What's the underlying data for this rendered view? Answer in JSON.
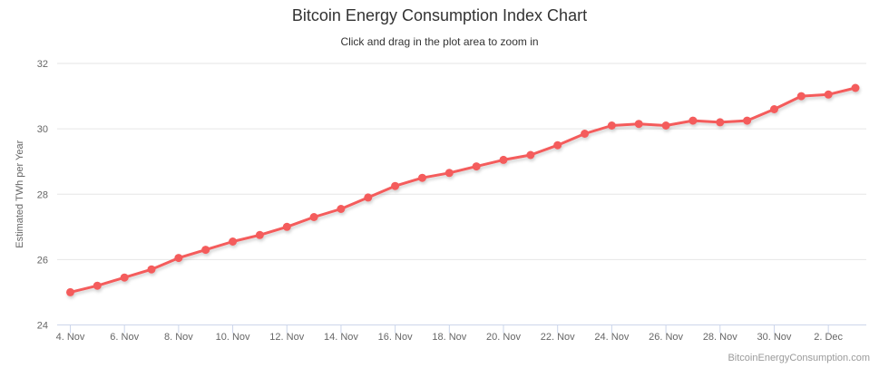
{
  "chart": {
    "title": "Bitcoin Energy Consumption Index Chart",
    "subtitle": "Click and drag in the plot area to zoom in",
    "watermark": "BitcoinEnergyConsumption.com"
  },
  "chart_data": {
    "type": "line",
    "title": "Bitcoin Energy Consumption Index Chart",
    "subtitle": "Click and drag in the plot area to zoom in",
    "xlabel": "",
    "ylabel": "Estimated TWh per Year",
    "ylim": [
      24,
      32
    ],
    "y_ticks": [
      24,
      26,
      28,
      30,
      32
    ],
    "grid": "horizontal-only",
    "legend": "none",
    "x_tick_every": 2,
    "x": [
      "4. Nov",
      "5. Nov",
      "6. Nov",
      "7. Nov",
      "8. Nov",
      "9. Nov",
      "10. Nov",
      "11. Nov",
      "12. Nov",
      "13. Nov",
      "14. Nov",
      "15. Nov",
      "16. Nov",
      "17. Nov",
      "18. Nov",
      "19. Nov",
      "20. Nov",
      "21. Nov",
      "22. Nov",
      "23. Nov",
      "24. Nov",
      "25. Nov",
      "26. Nov",
      "27. Nov",
      "28. Nov",
      "29. Nov",
      "30. Nov",
      "1. Dec",
      "2. Dec",
      "3. Dec"
    ],
    "series": [
      {
        "name": "Estimated TWh per Year",
        "values": [
          25.0,
          25.2,
          25.45,
          25.7,
          26.05,
          26.3,
          26.55,
          26.75,
          27.0,
          27.3,
          27.55,
          27.9,
          28.25,
          28.5,
          28.65,
          28.85,
          29.05,
          29.2,
          29.5,
          29.85,
          30.1,
          30.15,
          30.1,
          30.25,
          30.2,
          30.25,
          30.6,
          31.0,
          31.05,
          31.25
        ]
      }
    ],
    "colors": {
      "series": "#f45b5b",
      "grid": "#e6e6e6",
      "axis_line": "#ccd6eb",
      "tick": "#ccd6eb",
      "axis_labels": "#666666",
      "axis_title": "#666666"
    }
  }
}
